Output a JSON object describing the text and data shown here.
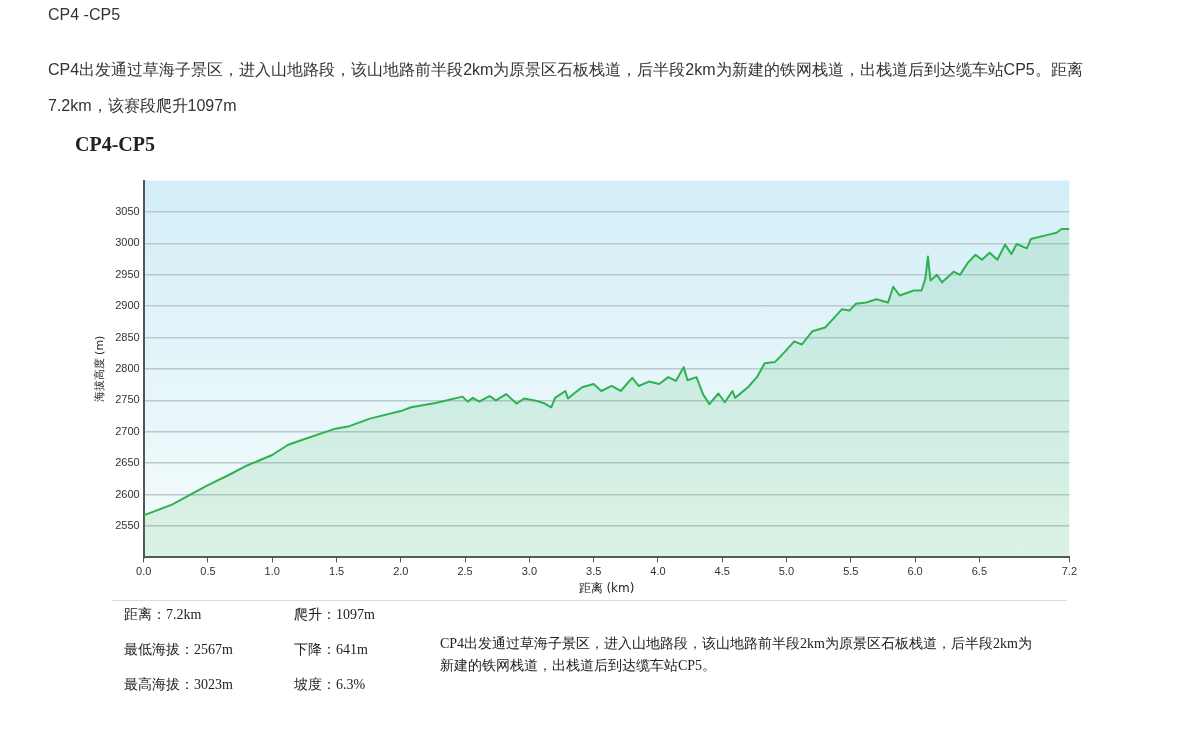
{
  "chart_data": {
    "type": "area",
    "title": "CP4-CP5",
    "xlabel": "距离 (km)",
    "ylabel": "海拔高度 (m)",
    "annotations": [
      "CP4 -CP5",
      "CP4出发通过草海子景区，进入山地路段，该山地路前半段2km为原景区石板栈道，后半段2km为新建的铁网栈道，出栈道后到达缆车站CP5。距离7.2km，该赛段爬升1097m",
      "距离：7.2km",
      "爬升：1097m",
      "最低海拔：2567m",
      "下降：641m",
      "最高海拔：3023m",
      "坡度：6.3%",
      "CP4出发通过草海子景区，进入山地路段，该山地路前半段2km为原景区石板栈道，后半段2km为新建的铁网栈道，出栈道后到达缆车站CP5。"
    ],
    "xlim": [
      0,
      7.2
    ],
    "ylim": [
      2500,
      3100
    ],
    "xticks": [
      {
        "value": 0,
        "label": "0.0"
      },
      0.5,
      {
        "value": 1,
        "label": "1.0"
      },
      1.5,
      {
        "value": 2,
        "label": "2.0"
      },
      2.5,
      {
        "value": 3,
        "label": "3.0"
      },
      3.5,
      {
        "value": 4,
        "label": "4.0"
      },
      4.5,
      {
        "value": 5,
        "label": "5.0"
      },
      5.5,
      {
        "value": 6,
        "label": "6.0"
      },
      6.5,
      7.2
    ],
    "yticks": [
      2550,
      2600,
      2650,
      2700,
      2750,
      2800,
      2850,
      2900,
      2950,
      3000,
      3050
    ],
    "grid": "y",
    "legend": false,
    "marker": "none",
    "line_style": "solid",
    "series": [
      {
        "color": "#2eb24f",
        "x": [
          0,
          0.22,
          0.5,
          0.67,
          0.8,
          1.0,
          1.12,
          1.23,
          1.49,
          1.6,
          1.76,
          2.0,
          2.08,
          2.27,
          2.48,
          2.52,
          2.56,
          2.61,
          2.69,
          2.74,
          2.82,
          2.9,
          2.96,
          3.06,
          3.12,
          3.17,
          3.2,
          3.28,
          3.3,
          3.36,
          3.41,
          3.5,
          3.56,
          3.64,
          3.71,
          3.8,
          3.85,
          3.93,
          4.01,
          4.08,
          4.14,
          4.2,
          4.23,
          4.3,
          4.35,
          4.4,
          4.47,
          4.52,
          4.58,
          4.6,
          4.7,
          4.77,
          4.83,
          4.91,
          4.99,
          5.06,
          5.12,
          5.2,
          5.3,
          5.43,
          5.49,
          5.54,
          5.62,
          5.7,
          5.79,
          5.83,
          5.88,
          5.99,
          6.05,
          6.08,
          6.1,
          6.12,
          6.17,
          6.21,
          6.3,
          6.35,
          6.41,
          6.47,
          6.52,
          6.58,
          6.64,
          6.7,
          6.75,
          6.79,
          6.87,
          6.9,
          7.04,
          7.1,
          7.14,
          7.2
        ],
        "values": [
          2567,
          2584,
          2615,
          2632,
          2646,
          2663,
          2679,
          2687,
          2705,
          2709,
          2721,
          2733,
          2739,
          2746,
          2756,
          2748,
          2754,
          2748,
          2757,
          2750,
          2760,
          2745,
          2753,
          2749,
          2745,
          2739,
          2754,
          2765,
          2753,
          2763,
          2771,
          2776,
          2765,
          2773,
          2765,
          2786,
          2773,
          2780,
          2776,
          2787,
          2781,
          2803,
          2782,
          2787,
          2760,
          2744,
          2761,
          2747,
          2765,
          2754,
          2771,
          2787,
          2809,
          2811,
          2828,
          2844,
          2839,
          2860,
          2866,
          2895,
          2893,
          2904,
          2906,
          2911,
          2906,
          2931,
          2917,
          2925,
          2925,
          2944,
          2979,
          2941,
          2950,
          2938,
          2955,
          2950,
          2969,
          2982,
          2974,
          2985,
          2974,
          2998,
          2983,
          2999,
          2992,
          3007,
          3014,
          3017,
          3023,
          3023
        ]
      }
    ]
  }
}
